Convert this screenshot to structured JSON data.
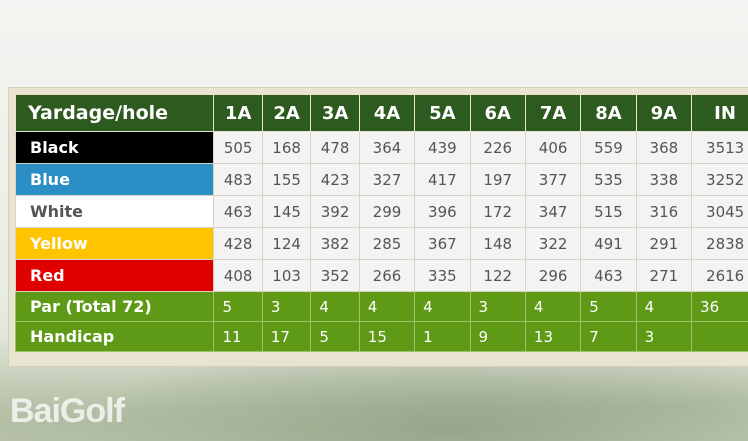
{
  "header": {
    "label": "Yardage/hole",
    "holes": [
      "1A",
      "2A",
      "3A",
      "4A",
      "5A",
      "6A",
      "7A",
      "8A",
      "9A",
      "IN"
    ]
  },
  "tees": [
    {
      "name": "Black",
      "color": "#000000",
      "values": [
        "505",
        "168",
        "478",
        "364",
        "439",
        "226",
        "406",
        "559",
        "368",
        "3513"
      ]
    },
    {
      "name": "Blue",
      "color": "#2b8fc6",
      "values": [
        "483",
        "155",
        "423",
        "327",
        "417",
        "197",
        "377",
        "535",
        "338",
        "3252"
      ]
    },
    {
      "name": "White",
      "color": "#ffffff",
      "values": [
        "463",
        "145",
        "392",
        "299",
        "396",
        "172",
        "347",
        "515",
        "316",
        "3045"
      ]
    },
    {
      "name": "Yellow",
      "color": "#ffc400",
      "values": [
        "428",
        "124",
        "382",
        "285",
        "367",
        "148",
        "322",
        "491",
        "291",
        "2838"
      ]
    },
    {
      "name": "Red",
      "color": "#e00000",
      "values": [
        "408",
        "103",
        "352",
        "266",
        "335",
        "122",
        "296",
        "463",
        "271",
        "2616"
      ]
    }
  ],
  "par": {
    "label": "Par (Total 72)",
    "values": [
      "5",
      "3",
      "4",
      "4",
      "4",
      "3",
      "4",
      "5",
      "4",
      "36"
    ]
  },
  "handicap": {
    "label": "Handicap",
    "values": [
      "11",
      "17",
      "5",
      "15",
      "1",
      "9",
      "13",
      "7",
      "3",
      ""
    ]
  },
  "watermark": "BaiGolf",
  "colors": {
    "header_green": "#2d5b1f",
    "row_green": "#5f9a17"
  }
}
